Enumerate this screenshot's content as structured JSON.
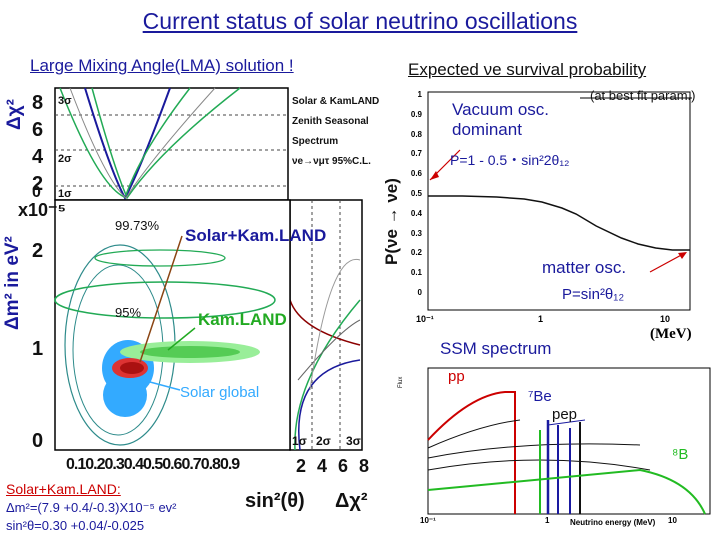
{
  "slide": {
    "title": "Current status of solar neutrino oscillations",
    "lma_heading": "Large Mixing Angle(LMA) solution !",
    "expected_heading": "Expected νe survival probability"
  },
  "left_plot": {
    "y_label_chi": "Δχ²",
    "y_label_dm": "Δm² in eV²",
    "y_exponent": "x10⁻⁵",
    "y_ticks_chi": [
      "8",
      "6",
      "4",
      "2",
      "0"
    ],
    "sigma_marks": [
      "3σ",
      "2σ",
      "1σ"
    ],
    "y_ticks_dm": [
      "2",
      "1",
      "0"
    ],
    "x_ticks_sin": "0.10.20.30.40.50.60.70.80.9",
    "x_ticks_chi": "2 4 6 8",
    "x_label_sin": "sin²(θ)",
    "x_label_chi": "Δχ²",
    "legend_lines": [
      "Solar & KamLAND",
      "Zenith Seasonal",
      "Spectrum",
      "νe→νμτ 95%C.L."
    ],
    "contour_labels": [
      "99.73%",
      "95%"
    ],
    "callouts": [
      "Solar+Kam.LAND",
      "Kam.LAND",
      "Solar global"
    ],
    "side_sigma": [
      "1σ",
      "2σ",
      "3σ"
    ],
    "result": {
      "heading": "Solar+Kam.LAND:",
      "dm2": "Δm²=(7.9 +0.4/-0.3)X10⁻⁵ ev²",
      "sin2": "sin²θ=0.30 +0.04/-0.025"
    }
  },
  "survival_plot": {
    "y_label": "P(νe → νe)",
    "y_ticks": [
      "1",
      "0.9",
      "0.8",
      "0.7",
      "0.6",
      "0.5",
      "0.4",
      "0.3",
      "0.2",
      "0.1",
      "0"
    ],
    "x_ticks": [
      "10⁻¹",
      "1",
      "10"
    ],
    "note": "(at best fit param.)",
    "vacuum_label": "Vacuum osc. dominant",
    "vacuum_formula": "P=1 - 0.5・sin²2θ₁₂",
    "matter_label": "matter osc.",
    "matter_formula": "P=sin²θ₁₂",
    "unit": "(MeV)",
    "curve_x_mev": [
      0.1,
      0.2,
      0.4,
      0.7,
      1,
      1.5,
      2,
      3,
      5,
      7,
      10,
      14,
      20
    ],
    "curve_p": [
      0.57,
      0.57,
      0.565,
      0.555,
      0.54,
      0.51,
      0.48,
      0.42,
      0.36,
      0.33,
      0.31,
      0.3,
      0.3
    ],
    "line_color": "#111111",
    "arrow_color": "#cc0000"
  },
  "ssm_plot": {
    "heading": "SSM spectrum",
    "source_labels": [
      "pp",
      "⁷Be",
      "pep",
      "⁸B"
    ],
    "x_label": "Neutrino energy (MeV)",
    "x_ticks": [
      "10⁻¹",
      "1",
      "10"
    ],
    "y_axis_label": "Flux",
    "colors": {
      "pp": "#cc0000",
      "be7": "#1a1aa0",
      "pep": "#111111",
      "b8": "#22bb22"
    }
  }
}
